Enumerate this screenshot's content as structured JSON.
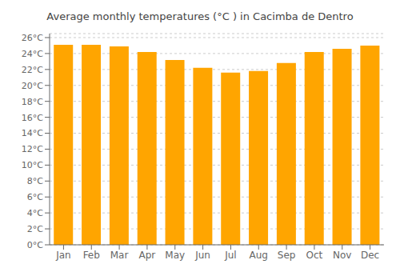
{
  "chart_data": {
    "type": "bar",
    "title": "Average monthly temperatures (°C ) in Cacimba de Dentro",
    "categories": [
      "Jan",
      "Feb",
      "Mar",
      "Apr",
      "May",
      "Jun",
      "Jul",
      "Aug",
      "Sep",
      "Oct",
      "Nov",
      "Dec"
    ],
    "values": [
      25.1,
      25.1,
      24.9,
      24.2,
      23.2,
      22.2,
      21.6,
      21.8,
      22.8,
      24.2,
      24.6,
      25.0
    ],
    "color": "#FFA500",
    "ylim": [
      0,
      26.5
    ],
    "yticks": [
      {
        "value": 0,
        "label": "0°C"
      },
      {
        "value": 2,
        "label": "2°C"
      },
      {
        "value": 4,
        "label": "4°C"
      },
      {
        "value": 6,
        "label": "6°C"
      },
      {
        "value": 8,
        "label": "8°C"
      },
      {
        "value": 10,
        "label": "10°C"
      },
      {
        "value": 12,
        "label": "12°C"
      },
      {
        "value": 14,
        "label": "14°C"
      },
      {
        "value": 16,
        "label": "16°C"
      },
      {
        "value": 18,
        "label": "18°C"
      },
      {
        "value": 20,
        "label": "20°C"
      },
      {
        "value": 22,
        "label": "22°C"
      },
      {
        "value": 24,
        "label": "24°C"
      },
      {
        "value": 26,
        "label": "26°C"
      }
    ],
    "grid": true
  }
}
